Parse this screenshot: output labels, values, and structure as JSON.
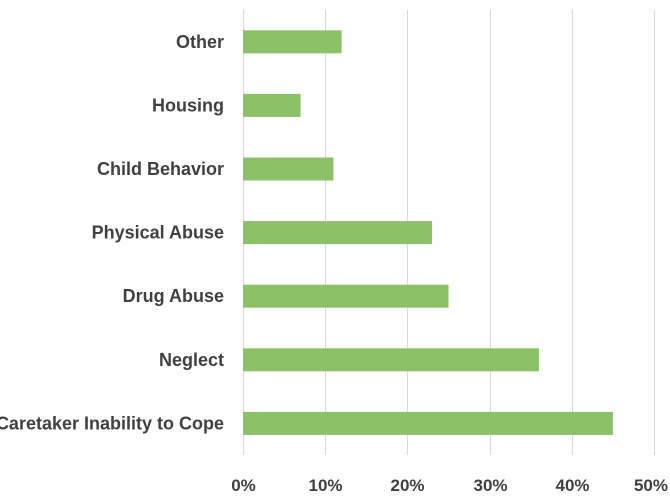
{
  "chart_data": {
    "type": "bar",
    "orientation": "horizontal",
    "title": "",
    "xlabel": "",
    "ylabel": "",
    "categories": [
      "Caretaker Inability to Cope",
      "Neglect",
      "Drug Abuse",
      "Physical Abuse",
      "Child Behavior",
      "Housing",
      "Other"
    ],
    "values": [
      45,
      36,
      25,
      23,
      11,
      7,
      12
    ],
    "value_unit": "%",
    "xlim": [
      0,
      50
    ],
    "x_ticks": [
      "0%",
      "10%",
      "20%",
      "30%",
      "40%",
      "50%"
    ],
    "grid": "vertical",
    "legend": "none",
    "bar_color": "#8cc168"
  }
}
